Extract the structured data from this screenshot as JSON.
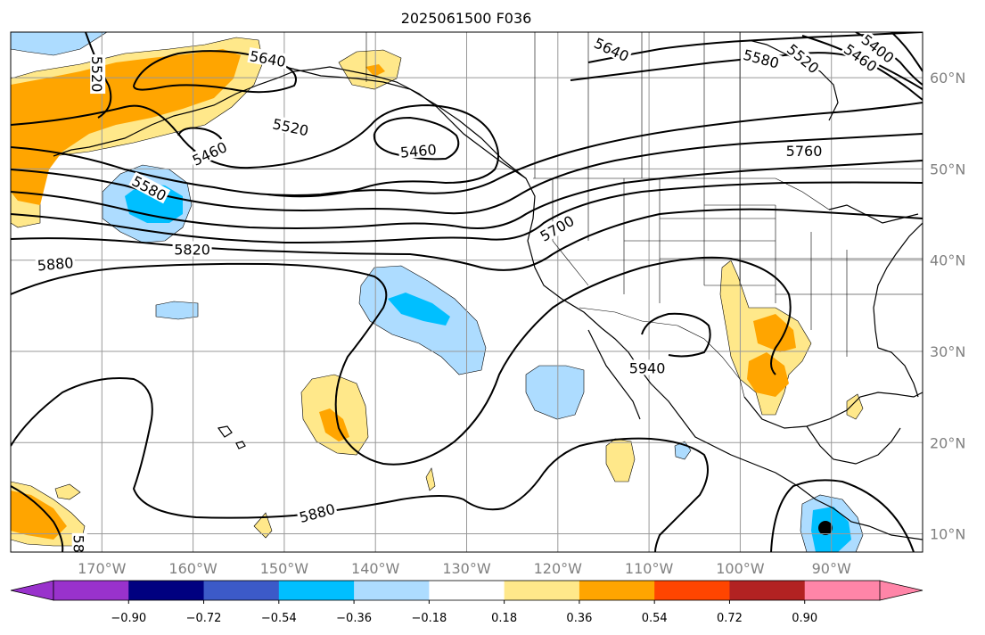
{
  "title": "2025061500 F036",
  "map": {
    "lon_range": [
      -180,
      -80
    ],
    "lat_range": [
      8,
      65
    ],
    "lon_ticks": [
      {
        "lon": -170,
        "label": "170°W"
      },
      {
        "lon": -160,
        "label": "160°W"
      },
      {
        "lon": -150,
        "label": "150°W"
      },
      {
        "lon": -140,
        "label": "140°W"
      },
      {
        "lon": -130,
        "label": "130°W"
      },
      {
        "lon": -120,
        "label": "120°W"
      },
      {
        "lon": -110,
        "label": "110°W"
      },
      {
        "lon": -100,
        "label": "100°W"
      },
      {
        "lon": -90,
        "label": "90°W"
      }
    ],
    "lat_ticks": [
      {
        "lat": 60,
        "label": "60°N"
      },
      {
        "lat": 50,
        "label": "50°N"
      },
      {
        "lat": 40,
        "label": "40°N"
      },
      {
        "lat": 30,
        "label": "30°N"
      },
      {
        "lat": 20,
        "label": "20°N"
      },
      {
        "lat": 10,
        "label": "10°N"
      }
    ],
    "contour_labels": [
      {
        "text": "5520",
        "lon": -170.5,
        "lat": 60.4,
        "rot": 90
      },
      {
        "text": "5640",
        "lon": -151.8,
        "lat": 62.1,
        "rot": 10
      },
      {
        "text": "5520",
        "lon": -149.3,
        "lat": 54.6,
        "rot": 12
      },
      {
        "text": "5460",
        "lon": -158.2,
        "lat": 51.7,
        "rot": -25
      },
      {
        "text": "5460",
        "lon": -135.3,
        "lat": 52.0,
        "rot": -5
      },
      {
        "text": "5580",
        "lon": -164.8,
        "lat": 47.9,
        "rot": 28
      },
      {
        "text": "5700",
        "lon": -120.1,
        "lat": 43.5,
        "rot": -30
      },
      {
        "text": "5820",
        "lon": -160.1,
        "lat": 41.2,
        "rot": 0
      },
      {
        "text": "5880",
        "lon": -175.1,
        "lat": 39.6,
        "rot": -5
      },
      {
        "text": "5640",
        "lon": -114.1,
        "lat": 63.1,
        "rot": 25
      },
      {
        "text": "5580",
        "lon": -97.7,
        "lat": 62.1,
        "rot": 15
      },
      {
        "text": "5520",
        "lon": -93.1,
        "lat": 62.1,
        "rot": 40
      },
      {
        "text": "5460",
        "lon": -86.8,
        "lat": 62.2,
        "rot": 35
      },
      {
        "text": "5400",
        "lon": -84.9,
        "lat": 63.2,
        "rot": 38
      },
      {
        "text": "5760",
        "lon": -93.0,
        "lat": 52.0,
        "rot": 0
      },
      {
        "text": "5940",
        "lon": -110.2,
        "lat": 28.2,
        "rot": 0
      },
      {
        "text": "5880",
        "lon": -146.4,
        "lat": 12.3,
        "rot": -15
      },
      {
        "text": "58",
        "lon": -172.5,
        "lat": 8.9,
        "rot": 90
      }
    ],
    "fill_colors": {
      "light_yellow": "#FFE88A",
      "orange": "#FFA500",
      "red_orange": "#FF4500",
      "light_blue": "#ADDCFF",
      "deep_sky": "#00BFFF",
      "black_dot": "#000000"
    }
  },
  "colorbar": {
    "colors": [
      "#9932CC",
      "#000080",
      "#3C5AC8",
      "#00BFFF",
      "#ADDCFF",
      "#FFFFFF",
      "#FFE88A",
      "#FFA500",
      "#FF4500",
      "#B22222",
      "#FF85A8"
    ],
    "extend_low": "#9932CC",
    "extend_high": "#FF85A8",
    "labels": [
      "−0.90",
      "−0.72",
      "−0.54",
      "−0.36",
      "−0.18",
      "0.18",
      "0.36",
      "0.54",
      "0.72",
      "0.90"
    ]
  }
}
